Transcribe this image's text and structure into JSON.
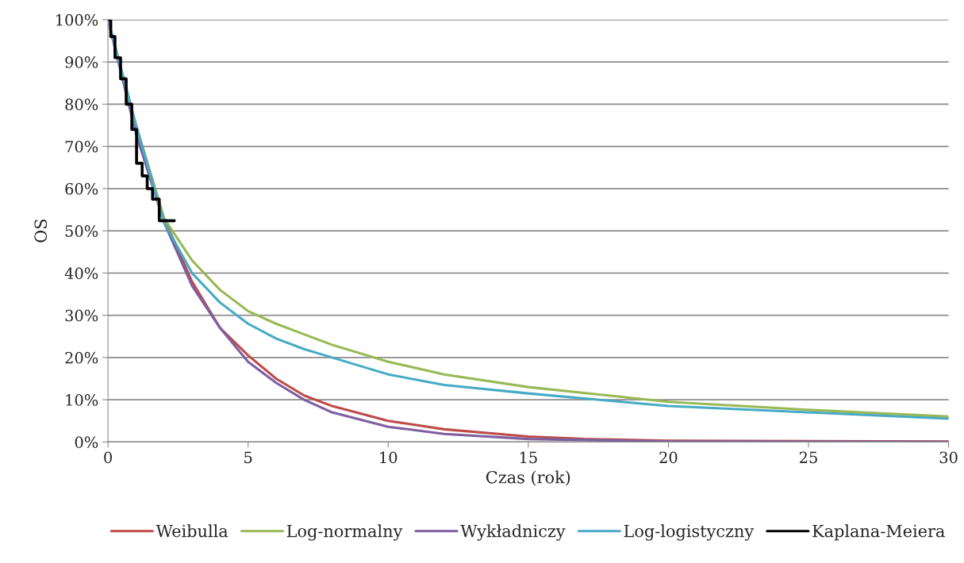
{
  "chart_data": {
    "type": "line",
    "xlabel": "Czas (rok)",
    "ylabel": "OS",
    "xlim": [
      0,
      30
    ],
    "xticks": [
      0,
      5,
      10,
      15,
      20,
      25,
      30
    ],
    "ylim": [
      0,
      100
    ],
    "yticks": [
      {
        "value": 0,
        "label": "0%"
      },
      {
        "value": 10,
        "label": "10%"
      },
      {
        "value": 20,
        "label": "20%"
      },
      {
        "value": 30,
        "label": "30%"
      },
      {
        "value": 40,
        "label": "40%"
      },
      {
        "value": 50,
        "label": "50%"
      },
      {
        "value": 60,
        "label": "60%"
      },
      {
        "value": 70,
        "label": "70%"
      },
      {
        "value": 80,
        "label": "80%"
      },
      {
        "value": 90,
        "label": "90%"
      },
      {
        "value": 100,
        "label": "100%"
      }
    ],
    "grid": "y",
    "legend": "bottom",
    "series": [
      {
        "name": "Weibulla",
        "color": "#be4b48",
        "x": [
          0,
          1,
          2,
          3,
          4,
          5,
          6,
          7,
          8,
          10,
          12,
          15,
          17,
          20,
          30
        ],
        "values": [
          100,
          75,
          53,
          38,
          27,
          20.5,
          15,
          11,
          8.5,
          5,
          3,
          1.3,
          0.7,
          0.3,
          0.1
        ]
      },
      {
        "name": "Log-normalny",
        "color": "#98b954",
        "x": [
          0,
          1,
          2,
          3,
          4,
          5,
          6,
          7,
          8,
          10,
          12,
          15,
          20,
          25,
          30
        ],
        "values": [
          100,
          75,
          53,
          43,
          36,
          31,
          28,
          25.5,
          23,
          19,
          16,
          13,
          9.5,
          7.6,
          6
        ]
      },
      {
        "name": "Wykładniczy",
        "color": "#7d5fa0",
        "x": [
          0,
          1,
          2,
          3,
          4,
          5,
          6,
          7,
          8,
          10,
          12,
          15,
          20,
          30
        ],
        "values": [
          100,
          73,
          52,
          37,
          27,
          19,
          14,
          10,
          7,
          3.6,
          1.9,
          0.7,
          0.1,
          0
        ]
      },
      {
        "name": "Log-logistyczny",
        "color": "#46aac5",
        "x": [
          0,
          1,
          2,
          3,
          4,
          5,
          6,
          7,
          8,
          10,
          12,
          15,
          20,
          25,
          30
        ],
        "values": [
          100,
          75,
          52,
          40,
          33,
          28,
          24.5,
          22,
          20,
          16,
          13.5,
          11.5,
          8.5,
          7,
          5.5
        ]
      },
      {
        "name": "Kaplana-Meiera",
        "type": "step",
        "color": "#000000",
        "x": [
          0,
          0.1,
          0.25,
          0.45,
          0.65,
          0.85,
          1.02,
          1.22,
          1.4,
          1.59,
          1.83,
          2.37
        ],
        "values": [
          100,
          96,
          91,
          86,
          80,
          74,
          66,
          63,
          60,
          57.5,
          52.4,
          52.4
        ]
      }
    ]
  }
}
